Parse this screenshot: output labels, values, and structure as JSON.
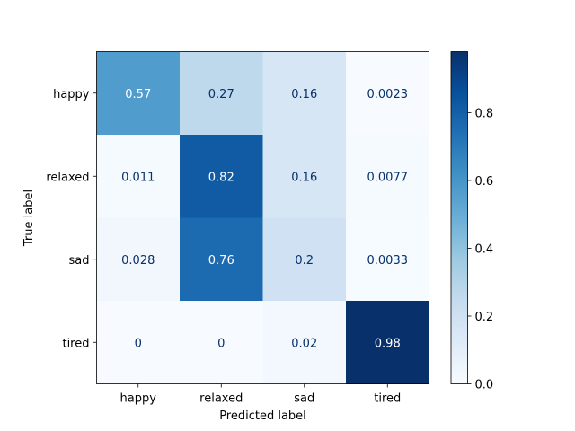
{
  "chart_data": {
    "type": "heatmap",
    "xlabel": "Predicted label",
    "ylabel": "True label",
    "x_categories": [
      "happy",
      "relaxed",
      "sad",
      "tired"
    ],
    "y_categories": [
      "happy",
      "relaxed",
      "sad",
      "tired"
    ],
    "values": [
      [
        0.57,
        0.27,
        0.16,
        0.0023
      ],
      [
        0.011,
        0.82,
        0.16,
        0.0077
      ],
      [
        0.028,
        0.76,
        0.2,
        0.0033
      ],
      [
        0,
        0,
        0.02,
        0.98
      ]
    ],
    "value_labels": [
      [
        "0.57",
        "0.27",
        "0.16",
        "0.0023"
      ],
      [
        "0.011",
        "0.82",
        "0.16",
        "0.0077"
      ],
      [
        "0.028",
        "0.76",
        "0.2",
        "0.0033"
      ],
      [
        "0",
        "0",
        "0.02",
        "0.98"
      ]
    ],
    "colorbar": {
      "colormap": "Blues",
      "range": [
        0,
        0.98
      ],
      "ticks": [
        0.0,
        0.2,
        0.4,
        0.6,
        0.8
      ],
      "tick_labels": [
        "0.0",
        "0.2",
        "0.4",
        "0.6",
        "0.8"
      ]
    },
    "grid": false,
    "text_color_light": "#ffffff",
    "text_color_dark": "#08306b"
  }
}
